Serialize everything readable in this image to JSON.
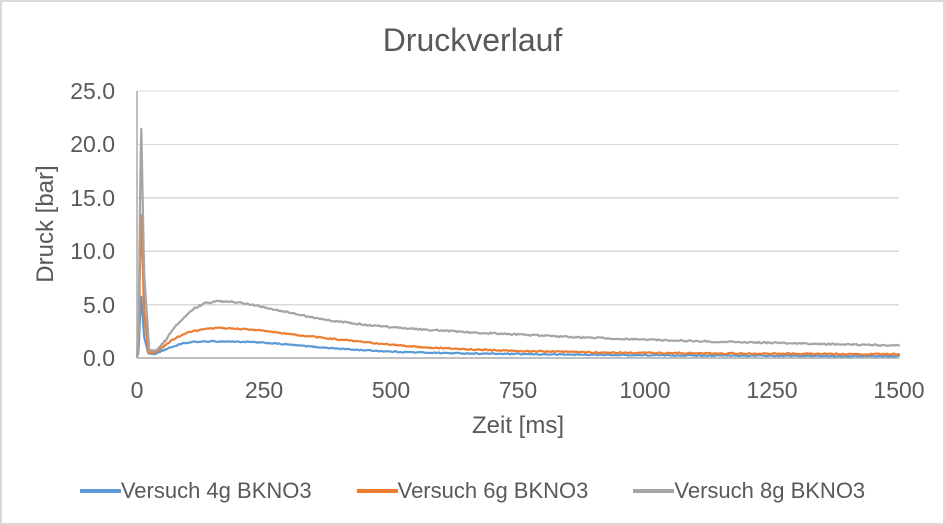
{
  "window": {
    "background": "#ffffff",
    "border_color": "#d9d9d9"
  },
  "chart_data": {
    "type": "line",
    "title": "Druckverlauf",
    "xlabel": "Zeit [ms]",
    "ylabel": "Druck [bar]",
    "xlim": [
      0,
      1500
    ],
    "ylim": [
      0,
      25
    ],
    "grid": "horizontal",
    "legend_position": "bottom",
    "axis_color": "#bfbfbf",
    "gridline_color": "#d9d9d9",
    "text_color": "#595959",
    "xticks": [
      {
        "value": 0,
        "label": "0"
      },
      {
        "value": 250,
        "label": "250"
      },
      {
        "value": 500,
        "label": "500"
      },
      {
        "value": 750,
        "label": "750"
      },
      {
        "value": 1000,
        "label": "1000"
      },
      {
        "value": 1250,
        "label": "1250"
      },
      {
        "value": 1500,
        "label": "1500"
      }
    ],
    "yticks": [
      {
        "value": 0,
        "label": "0.0"
      },
      {
        "value": 5,
        "label": "5.0"
      },
      {
        "value": 10,
        "label": "10.0"
      },
      {
        "value": 15,
        "label": "15.0"
      },
      {
        "value": 20,
        "label": "20.0"
      },
      {
        "value": 25,
        "label": "25.0"
      }
    ],
    "noise_half_amplitude_bar": [
      0.05,
      0.06,
      0.07
    ],
    "series": [
      {
        "name": "Versuch 4g BKNO3",
        "color": "#5b9bd5",
        "points": [
          [
            0,
            0.15
          ],
          [
            3,
            0.5
          ],
          [
            8,
            6.0
          ],
          [
            14,
            2.0
          ],
          [
            22,
            0.45
          ],
          [
            35,
            0.35
          ],
          [
            50,
            0.7
          ],
          [
            70,
            1.05
          ],
          [
            90,
            1.35
          ],
          [
            110,
            1.5
          ],
          [
            140,
            1.55
          ],
          [
            180,
            1.55
          ],
          [
            220,
            1.5
          ],
          [
            260,
            1.4
          ],
          [
            300,
            1.25
          ],
          [
            340,
            1.08
          ],
          [
            380,
            0.93
          ],
          [
            420,
            0.8
          ],
          [
            460,
            0.7
          ],
          [
            500,
            0.6
          ],
          [
            550,
            0.53
          ],
          [
            600,
            0.47
          ],
          [
            650,
            0.43
          ],
          [
            700,
            0.4
          ],
          [
            750,
            0.37
          ],
          [
            800,
            0.34
          ],
          [
            850,
            0.32
          ],
          [
            900,
            0.3
          ],
          [
            1000,
            0.26
          ],
          [
            1100,
            0.24
          ],
          [
            1200,
            0.22
          ],
          [
            1300,
            0.2
          ],
          [
            1400,
            0.18
          ],
          [
            1500,
            0.17
          ]
        ]
      },
      {
        "name": "Versuch 6g BKNO3",
        "color": "#ed7d31",
        "points": [
          [
            0,
            0.2
          ],
          [
            3,
            1.0
          ],
          [
            8,
            14.0
          ],
          [
            14,
            4.5
          ],
          [
            22,
            0.55
          ],
          [
            35,
            0.5
          ],
          [
            50,
            1.0
          ],
          [
            70,
            1.7
          ],
          [
            90,
            2.2
          ],
          [
            110,
            2.5
          ],
          [
            130,
            2.68
          ],
          [
            160,
            2.8
          ],
          [
            200,
            2.75
          ],
          [
            240,
            2.6
          ],
          [
            280,
            2.35
          ],
          [
            320,
            2.12
          ],
          [
            360,
            1.92
          ],
          [
            400,
            1.72
          ],
          [
            440,
            1.52
          ],
          [
            480,
            1.33
          ],
          [
            520,
            1.17
          ],
          [
            560,
            1.02
          ],
          [
            600,
            0.92
          ],
          [
            650,
            0.82
          ],
          [
            700,
            0.73
          ],
          [
            750,
            0.66
          ],
          [
            800,
            0.61
          ],
          [
            850,
            0.57
          ],
          [
            900,
            0.53
          ],
          [
            950,
            0.5
          ],
          [
            1000,
            0.48
          ],
          [
            1100,
            0.44
          ],
          [
            1200,
            0.41
          ],
          [
            1300,
            0.39
          ],
          [
            1400,
            0.37
          ],
          [
            1500,
            0.35
          ]
        ]
      },
      {
        "name": "Versuch 8g BKNO3",
        "color": "#a5a5a5",
        "points": [
          [
            0,
            0.25
          ],
          [
            3,
            2.0
          ],
          [
            8,
            22.4
          ],
          [
            14,
            8.0
          ],
          [
            24,
            0.75
          ],
          [
            38,
            0.7
          ],
          [
            55,
            1.6
          ],
          [
            75,
            2.9
          ],
          [
            95,
            3.9
          ],
          [
            115,
            4.7
          ],
          [
            135,
            5.15
          ],
          [
            160,
            5.3
          ],
          [
            190,
            5.25
          ],
          [
            220,
            5.05
          ],
          [
            260,
            4.65
          ],
          [
            300,
            4.25
          ],
          [
            340,
            3.85
          ],
          [
            380,
            3.52
          ],
          [
            420,
            3.27
          ],
          [
            460,
            3.07
          ],
          [
            500,
            2.9
          ],
          [
            550,
            2.72
          ],
          [
            600,
            2.56
          ],
          [
            650,
            2.43
          ],
          [
            700,
            2.31
          ],
          [
            750,
            2.2
          ],
          [
            800,
            2.09
          ],
          [
            850,
            1.99
          ],
          [
            900,
            1.89
          ],
          [
            950,
            1.8
          ],
          [
            1000,
            1.72
          ],
          [
            1050,
            1.65
          ],
          [
            1100,
            1.58
          ],
          [
            1150,
            1.52
          ],
          [
            1200,
            1.47
          ],
          [
            1250,
            1.42
          ],
          [
            1300,
            1.37
          ],
          [
            1350,
            1.31
          ],
          [
            1400,
            1.26
          ],
          [
            1450,
            1.22
          ],
          [
            1500,
            1.18
          ]
        ]
      }
    ]
  }
}
